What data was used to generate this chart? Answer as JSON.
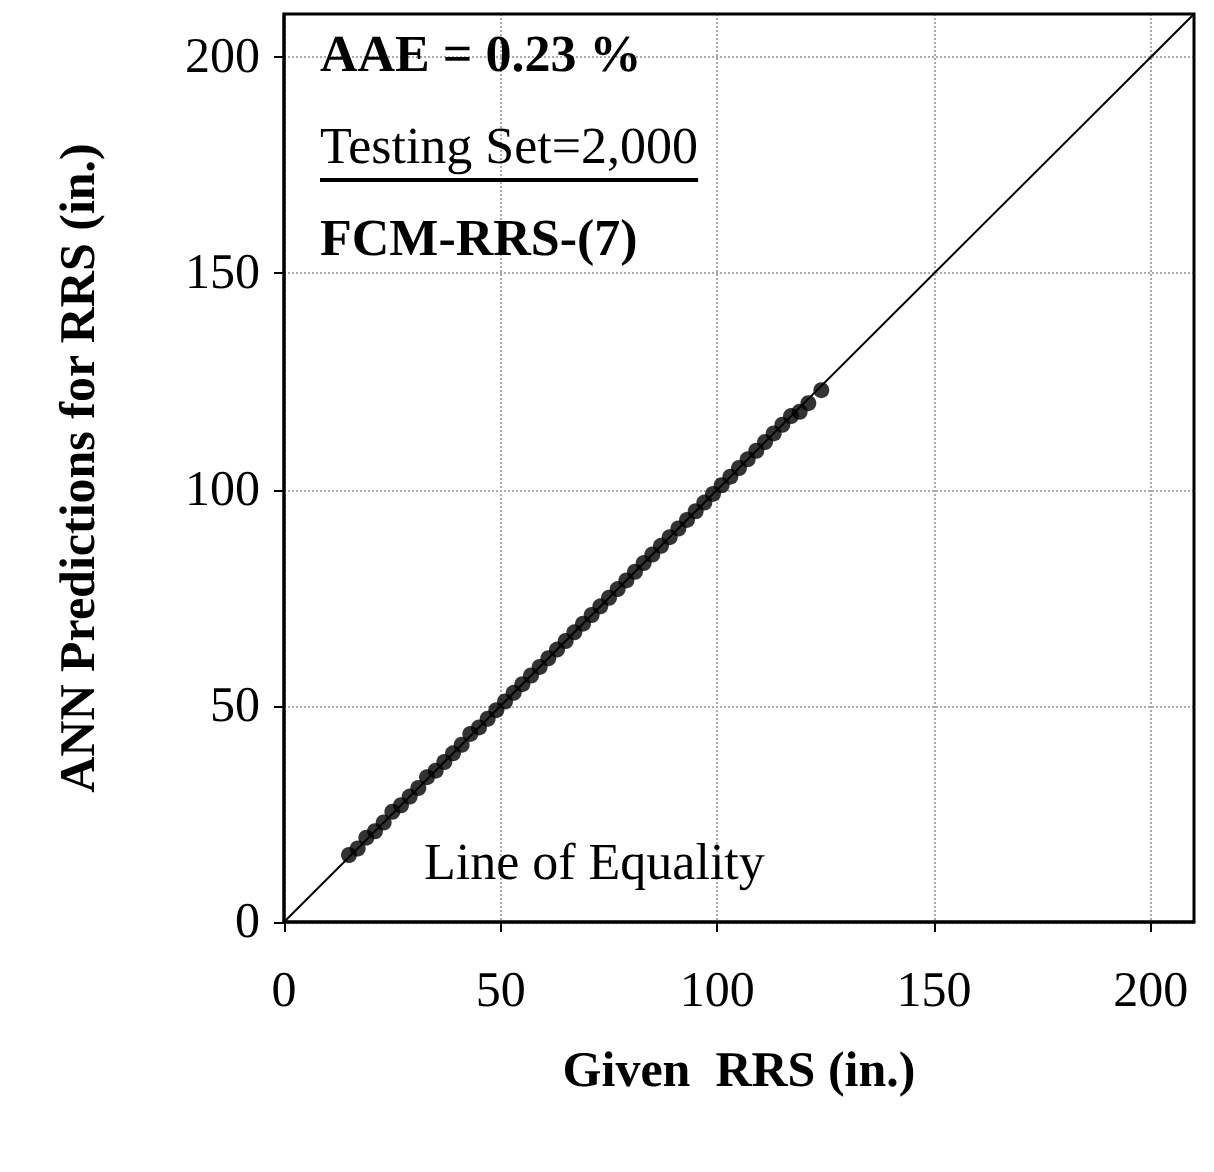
{
  "chart_data": {
    "type": "scatter",
    "xlabel": "Given  RRS (in.)",
    "ylabel": "ANN Predictions for RRS (in.)",
    "annotations": [
      "AAE = 0.23 %",
      "Testing Set=2,000",
      "FCM-RRS-(7)",
      "Line of Equality"
    ],
    "xlim": [
      0,
      210
    ],
    "xticks": [
      0,
      50,
      100,
      150,
      200
    ],
    "ylim": [
      0,
      210
    ],
    "yticks": [
      0,
      50,
      100,
      150,
      200
    ],
    "grid": true,
    "marker": "circle",
    "series": [
      {
        "type": "line",
        "color": "#000000",
        "marker": "none",
        "x": [
          0,
          210
        ],
        "values": [
          0,
          210
        ]
      },
      {
        "color": "#000000",
        "x": [
          15,
          17,
          19,
          21,
          23,
          25,
          27,
          29,
          31,
          33,
          35,
          37,
          39,
          41,
          43,
          45,
          47,
          49,
          51,
          53,
          55,
          57,
          59,
          61,
          63,
          65,
          67,
          69,
          71,
          73,
          75,
          77,
          79,
          81,
          83,
          85,
          87,
          89,
          91,
          93,
          95,
          97,
          99,
          101,
          103,
          105,
          107,
          109,
          111,
          113,
          115,
          117,
          119,
          121,
          124
        ],
        "values": [
          15.5,
          17,
          19.5,
          21,
          23,
          25.5,
          27,
          29,
          31,
          33.5,
          35,
          37,
          39,
          41,
          43.5,
          45,
          47,
          49,
          51,
          53,
          55,
          57,
          59,
          61,
          63,
          65,
          67,
          69,
          71,
          73,
          75,
          77,
          79,
          81,
          83,
          85,
          87,
          89,
          91,
          93,
          95,
          97,
          99,
          101,
          103,
          105,
          107,
          109,
          111,
          113,
          115,
          117,
          118,
          120,
          123
        ]
      }
    ]
  }
}
